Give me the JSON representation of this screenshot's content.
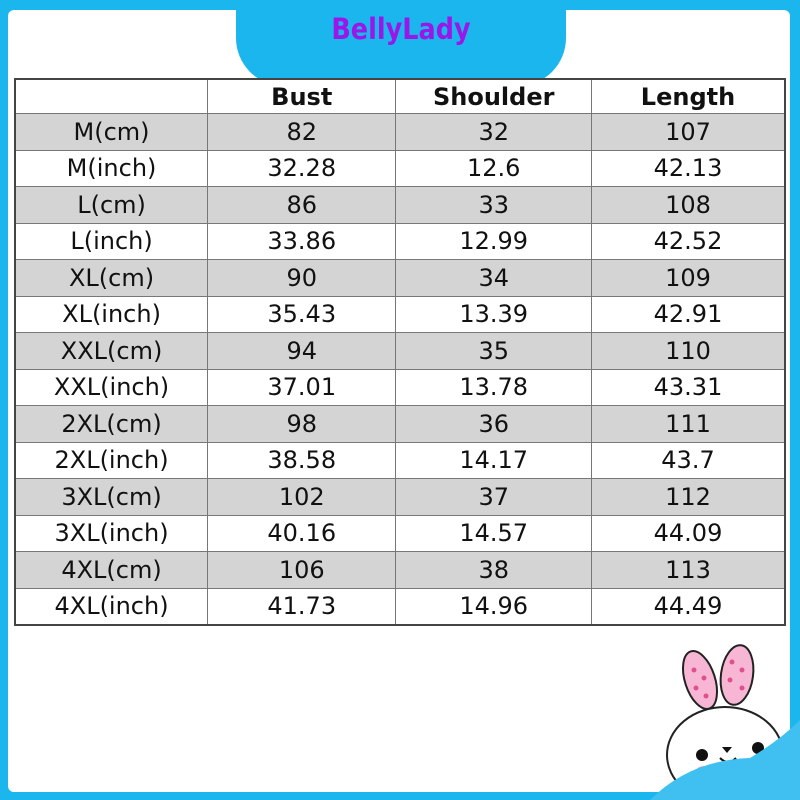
{
  "brand": "BellyLady",
  "table": {
    "headers": [
      "",
      "Bust",
      "Shoulder",
      "Length"
    ],
    "rows": [
      [
        "M(cm)",
        "82",
        "32",
        "107"
      ],
      [
        "M(inch)",
        "32.28",
        "12.6",
        "42.13"
      ],
      [
        "L(cm)",
        "86",
        "33",
        "108"
      ],
      [
        "L(inch)",
        "33.86",
        "12.99",
        "42.52"
      ],
      [
        "XL(cm)",
        "90",
        "34",
        "109"
      ],
      [
        "XL(inch)",
        "35.43",
        "13.39",
        "42.91"
      ],
      [
        "XXL(cm)",
        "94",
        "35",
        "110"
      ],
      [
        "XXL(inch)",
        "37.01",
        "13.78",
        "43.31"
      ],
      [
        "2XL(cm)",
        "98",
        "36",
        "111"
      ],
      [
        "2XL(inch)",
        "38.58",
        "14.17",
        "43.7"
      ],
      [
        "3XL(cm)",
        "102",
        "37",
        "112"
      ],
      [
        "3XL(inch)",
        "40.16",
        "14.57",
        "44.09"
      ],
      [
        "4XL(cm)",
        "106",
        "38",
        "113"
      ],
      [
        "4XL(inch)",
        "41.73",
        "14.96",
        "44.49"
      ]
    ]
  },
  "colors": {
    "frame": "#1bb6ee",
    "brand_text": "#9a17e8",
    "row_alt": "#d4d4d4"
  },
  "decoration": "bunny-icon"
}
